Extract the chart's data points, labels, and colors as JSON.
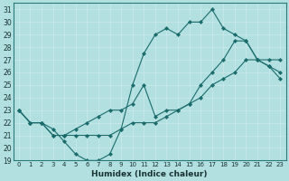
{
  "xlabel": "Humidex (Indice chaleur)",
  "background_color": "#b2e0e0",
  "grid_color": "#c8e8e8",
  "line_color": "#1a6b6b",
  "xlim": [
    -0.5,
    23.5
  ],
  "ylim": [
    19,
    31.5
  ],
  "xticks": [
    0,
    1,
    2,
    3,
    4,
    5,
    6,
    7,
    8,
    9,
    10,
    11,
    12,
    13,
    14,
    15,
    16,
    17,
    18,
    19,
    20,
    21,
    22,
    23
  ],
  "yticks": [
    19,
    20,
    21,
    22,
    23,
    24,
    25,
    26,
    27,
    28,
    29,
    30,
    31
  ],
  "series": [
    {
      "x": [
        0,
        1,
        2,
        3,
        4,
        5,
        6,
        7,
        8,
        9,
        10,
        11,
        12,
        13,
        14,
        15,
        16,
        17,
        18,
        19,
        20,
        21,
        22,
        23
      ],
      "y": [
        23,
        22,
        22,
        21,
        21,
        21,
        21,
        21,
        21,
        21.5,
        22,
        22,
        22,
        22.5,
        23,
        23.5,
        24,
        25,
        25.5,
        26,
        27,
        27,
        27,
        27
      ]
    },
    {
      "x": [
        0,
        1,
        2,
        3,
        4,
        5,
        6,
        7,
        8,
        9,
        10,
        11,
        12,
        13,
        14,
        15,
        16,
        17,
        18,
        19,
        20,
        21,
        22,
        23
      ],
      "y": [
        23,
        22,
        22,
        21.5,
        20.5,
        19.5,
        19,
        19,
        19.5,
        21.5,
        25,
        27.5,
        29,
        29.5,
        29,
        30,
        30,
        31,
        29.5,
        29,
        28.5,
        27,
        26.5,
        26
      ]
    },
    {
      "x": [
        0,
        1,
        2,
        3,
        4,
        5,
        6,
        7,
        8,
        9,
        10,
        11,
        12,
        13,
        14,
        15,
        16,
        17,
        18,
        19,
        20,
        21,
        22,
        23
      ],
      "y": [
        23,
        22,
        22,
        21,
        21,
        21.5,
        22,
        22.5,
        23,
        23,
        23.5,
        25,
        22.5,
        23,
        23,
        23.5,
        25,
        26,
        27,
        28.5,
        28.5,
        27,
        26.5,
        25.5
      ]
    }
  ]
}
